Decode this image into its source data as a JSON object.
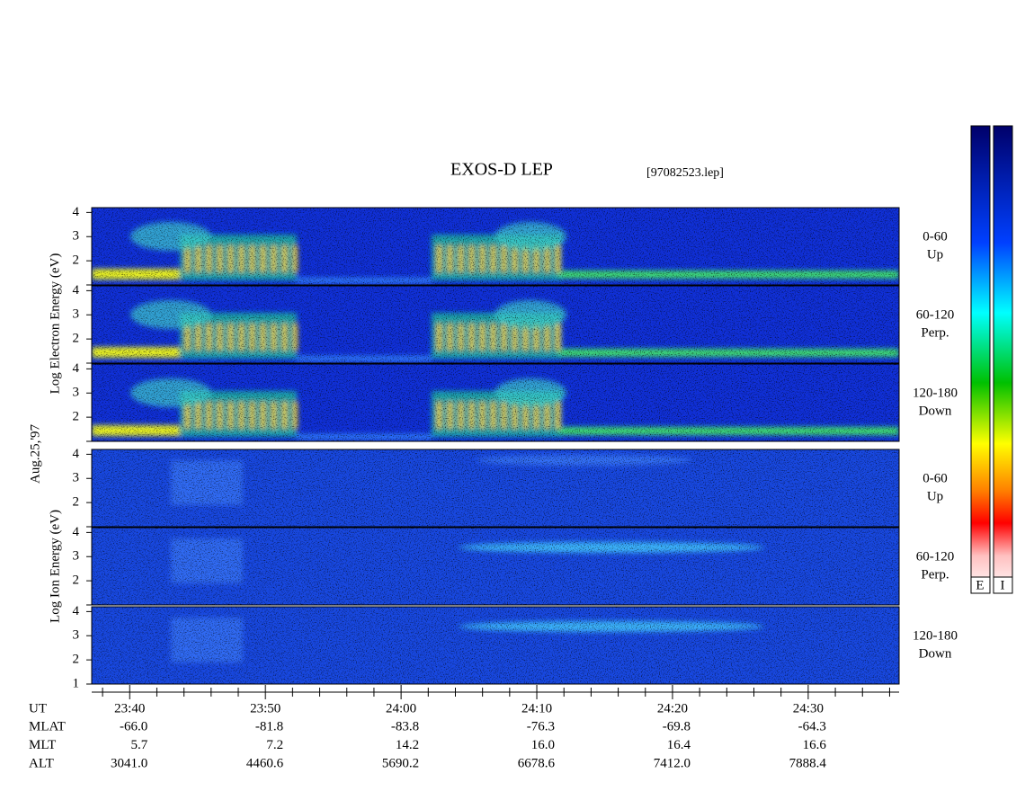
{
  "title": "EXOS-D LEP",
  "file": "[97082523.lep]",
  "date_label": "Aug.25,'97",
  "electron": {
    "ylabel": "Log  Electron  Energy (eV)",
    "panels": [
      {
        "angle": "0-60",
        "direction": "Up",
        "ylim": [
          1,
          4.2
        ],
        "yticks": [
          2,
          3,
          4
        ]
      },
      {
        "angle": "60-120",
        "direction": "Perp.",
        "ylim": [
          1,
          4.2
        ],
        "yticks": [
          2,
          3,
          4
        ]
      },
      {
        "angle": "120-180",
        "direction": "Down",
        "ylim": [
          1,
          4.2
        ],
        "yticks": [
          2,
          3,
          4
        ]
      }
    ]
  },
  "ion": {
    "ylabel": "Log  Ion  Energy (eV)",
    "panels": [
      {
        "angle": "0-60",
        "direction": "Up",
        "ylim": [
          1,
          4.2
        ],
        "yticks": [
          2,
          3,
          4
        ]
      },
      {
        "angle": "60-120",
        "direction": "Perp.",
        "ylim": [
          1,
          4.2
        ],
        "yticks": [
          2,
          3,
          4
        ]
      },
      {
        "angle": "120-180",
        "direction": "Down",
        "ylim": [
          1,
          4.2
        ],
        "yticks": [
          1,
          2,
          3,
          4
        ]
      }
    ]
  },
  "time_axis": {
    "label": "UT",
    "xlim": [
      37.2,
      96.7
    ],
    "xticks": [
      {
        "value": 40,
        "label": "23:40"
      },
      {
        "value": 50,
        "label": "23:50"
      },
      {
        "value": 60,
        "label": "24:00"
      },
      {
        "value": 70,
        "label": "24:10"
      },
      {
        "value": 80,
        "label": "24:20"
      },
      {
        "value": 90,
        "label": "24:30"
      }
    ],
    "minor_xticks": [
      38,
      42,
      44,
      46,
      48,
      52,
      54,
      56,
      58,
      62,
      64,
      66,
      68,
      72,
      74,
      76,
      78,
      82,
      84,
      86,
      88,
      92,
      94,
      96
    ]
  },
  "ephemeris": [
    {
      "label": "MLAT",
      "values": [
        "-66.0",
        "-81.8",
        "-83.8",
        "-76.3",
        "-69.8",
        "-64.3"
      ]
    },
    {
      "label": "MLT",
      "values": [
        "5.7",
        "7.2",
        "14.2",
        "16.0",
        "16.4",
        "16.6"
      ]
    },
    {
      "label": "ALT",
      "values": [
        "3041.0",
        "4460.6",
        "5690.2",
        "6678.6",
        "7412.0",
        "7888.4"
      ]
    }
  ],
  "colorbars": [
    "E",
    "I"
  ]
}
